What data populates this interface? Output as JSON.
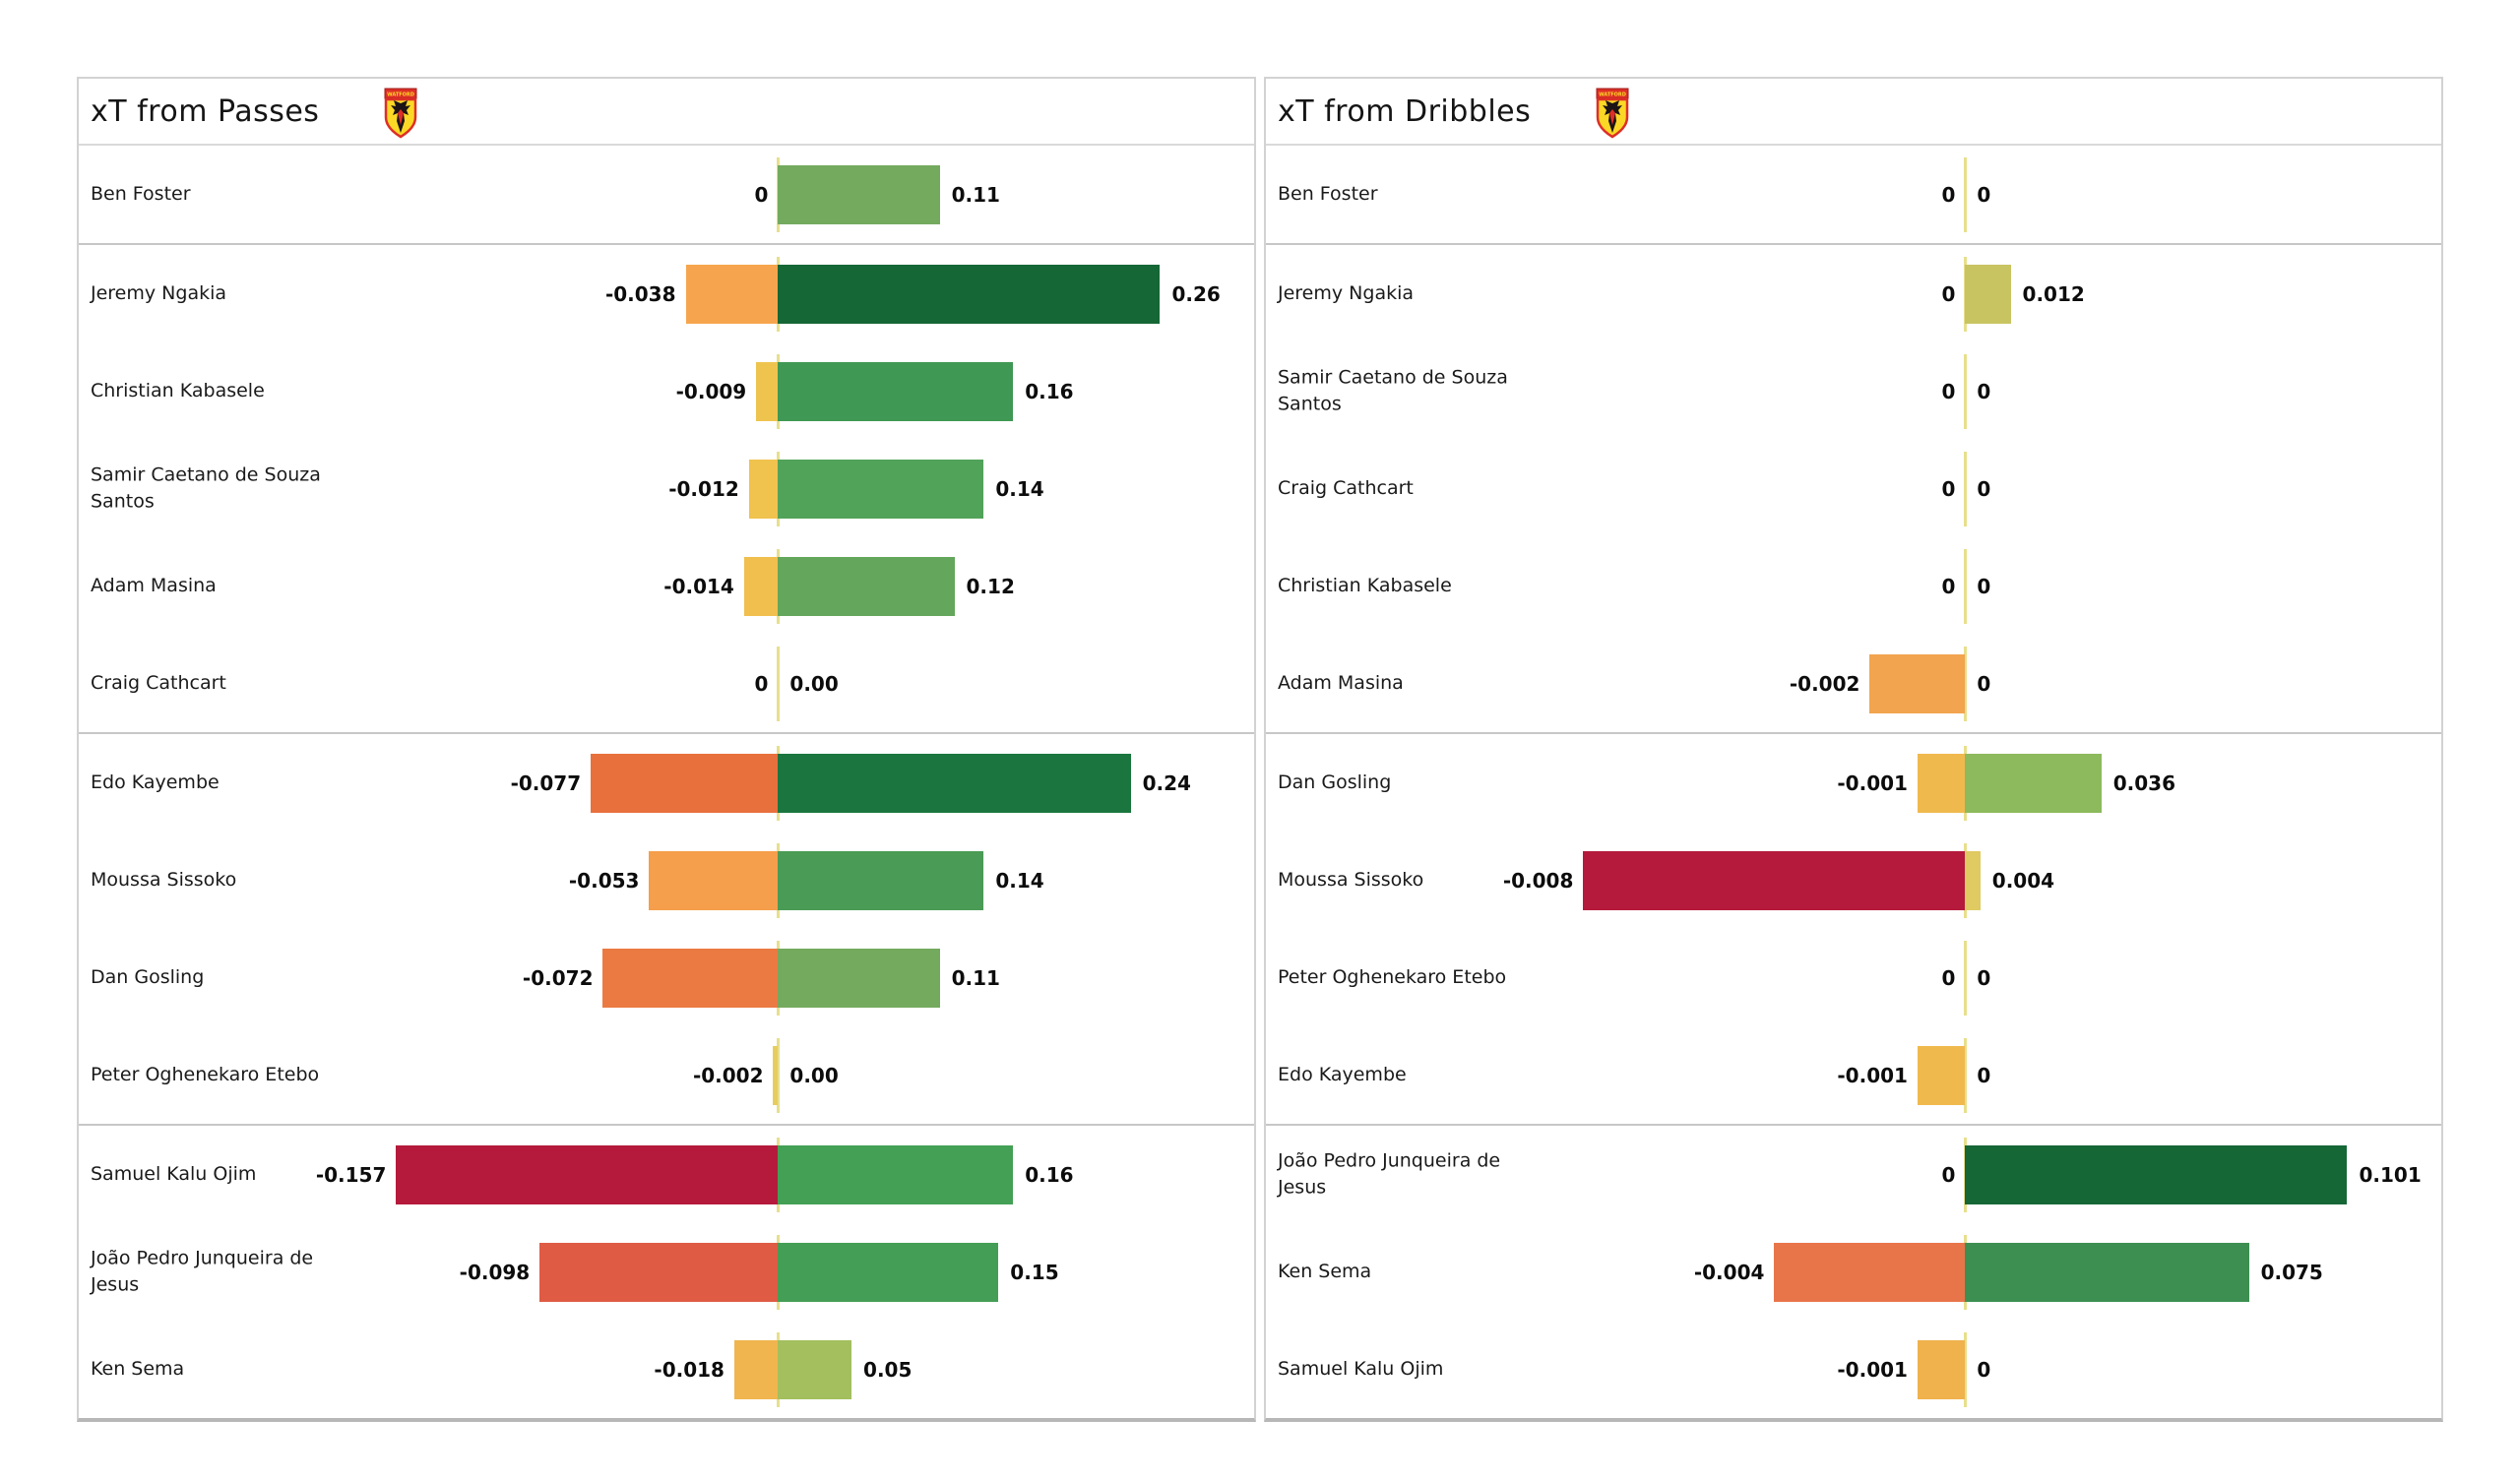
{
  "page": {
    "background": "#ffffff"
  },
  "colors": {
    "zero_tick": "#e7df8d",
    "panel_border": "#d2d2d2",
    "group_border": "#c7c7c7",
    "title_text": "#151515",
    "name_text": "#1a1a1a",
    "value_text": "#0c0c0c",
    "badge_yellow": "#fbd826",
    "badge_red": "#dd2f26",
    "badge_black": "#1d1416"
  },
  "layout_hints": {
    "zero_position_pct": 59.5,
    "max_bar_pct": 32.5,
    "legend": "none",
    "grid": "off"
  },
  "chart_data": [
    {
      "type": "bar",
      "orientation": "horizontal",
      "title": "xT from Passes",
      "categories": [
        "Ben Foster",
        "Jeremy Ngakia",
        "Christian Kabasele",
        "Samir Caetano de Souza Santos",
        "Adam Masina",
        "Craig Cathcart",
        "Edo Kayembe",
        "Moussa Sissoko",
        "Dan Gosling",
        "Peter Oghenekaro Etebo",
        "Samuel Kalu Ojim",
        "João Pedro Junqueira de Jesus",
        "Ken Sema"
      ],
      "series": [
        {
          "name": "negative xT",
          "values": [
            0,
            -0.038,
            -0.009,
            -0.012,
            -0.014,
            0,
            -0.077,
            -0.053,
            -0.072,
            -0.002,
            -0.157,
            -0.098,
            -0.018
          ]
        },
        {
          "name": "positive xT",
          "values": [
            0.11,
            0.26,
            0.16,
            0.14,
            0.12,
            0.0,
            0.24,
            0.14,
            0.11,
            0.0,
            0.16,
            0.15,
            0.05
          ]
        }
      ],
      "xlim": [
        -0.157,
        0.26
      ]
    },
    {
      "type": "bar",
      "orientation": "horizontal",
      "title": "xT from Dribbles",
      "categories": [
        "Ben Foster",
        "Jeremy Ngakia",
        "Samir Caetano de Souza Santos",
        "Craig Cathcart",
        "Christian Kabasele",
        "Adam Masina",
        "Dan Gosling",
        "Moussa Sissoko",
        "Peter Oghenekaro Etebo",
        "Edo Kayembe",
        "João Pedro Junqueira de Jesus",
        "Ken Sema",
        "Samuel Kalu Ojim"
      ],
      "series": [
        {
          "name": "negative xT",
          "values": [
            0,
            0,
            0,
            0,
            0,
            -0.002,
            -0.001,
            -0.008,
            0,
            -0.001,
            0,
            -0.004,
            -0.001
          ]
        },
        {
          "name": "positive xT",
          "values": [
            0,
            0.012,
            0,
            0,
            0,
            0,
            0.036,
            0.004,
            0,
            0,
            0.101,
            0.075,
            0
          ]
        }
      ],
      "xlim": [
        -0.008,
        0.101
      ]
    }
  ],
  "panels": [
    {
      "title": "xT from Passes",
      "badge_icon": "watford-crest",
      "neg_max": 0.157,
      "pos_max": 0.26,
      "groups": [
        {
          "rows": [
            {
              "name": "Ben Foster",
              "neg_label": "0",
              "neg_value": 0,
              "neg_color": null,
              "pos_label": "0.11",
              "pos_value": 0.11,
              "pos_color": "#74aa5e"
            }
          ]
        },
        {
          "rows": [
            {
              "name": "Jeremy Ngakia",
              "neg_label": "-0.038",
              "neg_value": -0.038,
              "neg_color": "#f6a54e",
              "pos_label": "0.26",
              "pos_value": 0.26,
              "pos_color": "#156736"
            },
            {
              "name": "Christian Kabasele",
              "neg_label": "-0.009",
              "neg_value": -0.009,
              "neg_color": "#eec44f",
              "pos_label": "0.16",
              "pos_value": 0.16,
              "pos_color": "#3f9853"
            },
            {
              "name": "Samir Caetano de Souza Santos",
              "neg_label": "-0.012",
              "neg_value": -0.012,
              "neg_color": "#f0c24e",
              "pos_label": "0.14",
              "pos_value": 0.14,
              "pos_color": "#52a35a"
            },
            {
              "name": "Adam Masina",
              "neg_label": "-0.014",
              "neg_value": -0.014,
              "neg_color": "#f0bf4d",
              "pos_label": "0.12",
              "pos_value": 0.12,
              "pos_color": "#64a75c"
            },
            {
              "name": "Craig Cathcart",
              "neg_label": "0",
              "neg_value": 0,
              "neg_color": null,
              "pos_label": "0.00",
              "pos_value": 0,
              "pos_color": null
            }
          ]
        },
        {
          "rows": [
            {
              "name": "Edo Kayembe",
              "neg_label": "-0.077",
              "neg_value": -0.077,
              "neg_color": "#e8703d",
              "pos_label": "0.24",
              "pos_value": 0.24,
              "pos_color": "#1a763e"
            },
            {
              "name": "Moussa Sissoko",
              "neg_label": "-0.053",
              "neg_value": -0.053,
              "neg_color": "#f59e4b",
              "pos_label": "0.14",
              "pos_value": 0.14,
              "pos_color": "#4a9b55"
            },
            {
              "name": "Dan Gosling",
              "neg_label": "-0.072",
              "neg_value": -0.072,
              "neg_color": "#ea7a42",
              "pos_label": "0.11",
              "pos_value": 0.11,
              "pos_color": "#74aa5e"
            },
            {
              "name": "Peter Oghenekaro Etebo",
              "neg_label": "-0.002",
              "neg_value": -0.002,
              "neg_color": "#e7cd5e",
              "pos_label": "0.00",
              "pos_value": 0,
              "pos_color": null
            }
          ]
        },
        {
          "rows": [
            {
              "name": "Samuel Kalu Ojim",
              "neg_label": "-0.157",
              "neg_value": -0.157,
              "neg_color": "#b51a3c",
              "pos_label": "0.16",
              "pos_value": 0.16,
              "pos_color": "#43a055"
            },
            {
              "name": "João Pedro Junqueira de Jesus",
              "neg_label": "-0.098",
              "neg_value": -0.098,
              "neg_color": "#df5b44",
              "pos_label": "0.15",
              "pos_value": 0.15,
              "pos_color": "#459e55"
            },
            {
              "name": "Ken Sema",
              "neg_label": "-0.018",
              "neg_value": -0.018,
              "neg_color": "#f0b54f",
              "pos_label": "0.05",
              "pos_value": 0.05,
              "pos_color": "#a3bf5e"
            }
          ]
        }
      ]
    },
    {
      "title": "xT from Dribbles",
      "badge_icon": "watford-crest",
      "neg_max": 0.008,
      "pos_max": 0.101,
      "groups": [
        {
          "rows": [
            {
              "name": "Ben Foster",
              "neg_label": "0",
              "neg_value": 0,
              "neg_color": null,
              "pos_label": "0",
              "pos_value": 0,
              "pos_color": null
            }
          ]
        },
        {
          "rows": [
            {
              "name": "Jeremy Ngakia",
              "neg_label": "0",
              "neg_value": 0,
              "neg_color": null,
              "pos_label": "0.012",
              "pos_value": 0.012,
              "pos_color": "#c8c462"
            },
            {
              "name": "Samir Caetano de Souza Santos",
              "neg_label": "0",
              "neg_value": 0,
              "neg_color": null,
              "pos_label": "0",
              "pos_value": 0,
              "pos_color": null
            },
            {
              "name": "Craig Cathcart",
              "neg_label": "0",
              "neg_value": 0,
              "neg_color": null,
              "pos_label": "0",
              "pos_value": 0,
              "pos_color": null
            },
            {
              "name": "Christian Kabasele",
              "neg_label": "0",
              "neg_value": 0,
              "neg_color": null,
              "pos_label": "0",
              "pos_value": 0,
              "pos_color": null
            },
            {
              "name": "Adam Masina",
              "neg_label": "-0.002",
              "neg_value": -0.002,
              "neg_color": "#f2a44f",
              "pos_label": "0",
              "pos_value": 0,
              "pos_color": null
            }
          ]
        },
        {
          "rows": [
            {
              "name": "Dan Gosling",
              "neg_label": "-0.001",
              "neg_value": -0.001,
              "neg_color": "#f0b94e",
              "pos_label": "0.036",
              "pos_value": 0.036,
              "pos_color": "#8cba5c"
            },
            {
              "name": "Moussa Sissoko",
              "neg_label": "-0.008",
              "neg_value": -0.008,
              "neg_color": "#b51a3c",
              "pos_label": "0.004",
              "pos_value": 0.004,
              "pos_color": "#e0ca62"
            },
            {
              "name": "Peter Oghenekaro Etebo",
              "neg_label": "0",
              "neg_value": 0,
              "neg_color": null,
              "pos_label": "0",
              "pos_value": 0,
              "pos_color": null
            },
            {
              "name": "Edo Kayembe",
              "neg_label": "-0.001",
              "neg_value": -0.001,
              "neg_color": "#f0b94e",
              "pos_label": "0",
              "pos_value": 0,
              "pos_color": null
            }
          ]
        },
        {
          "rows": [
            {
              "name": "João Pedro Junqueira de Jesus",
              "neg_label": "0",
              "neg_value": 0,
              "neg_color": null,
              "pos_label": "0.101",
              "pos_value": 0.101,
              "pos_color": "#156736"
            },
            {
              "name": "Ken Sema",
              "neg_label": "-0.004",
              "neg_value": -0.004,
              "neg_color": "#e8754a",
              "pos_label": "0.075",
              "pos_value": 0.075,
              "pos_color": "#3c8f51"
            },
            {
              "name": "Samuel Kalu Ojim",
              "neg_label": "-0.001",
              "neg_value": -0.001,
              "neg_color": "#efb24d",
              "pos_label": "0",
              "pos_value": 0,
              "pos_color": null
            }
          ]
        }
      ]
    }
  ]
}
